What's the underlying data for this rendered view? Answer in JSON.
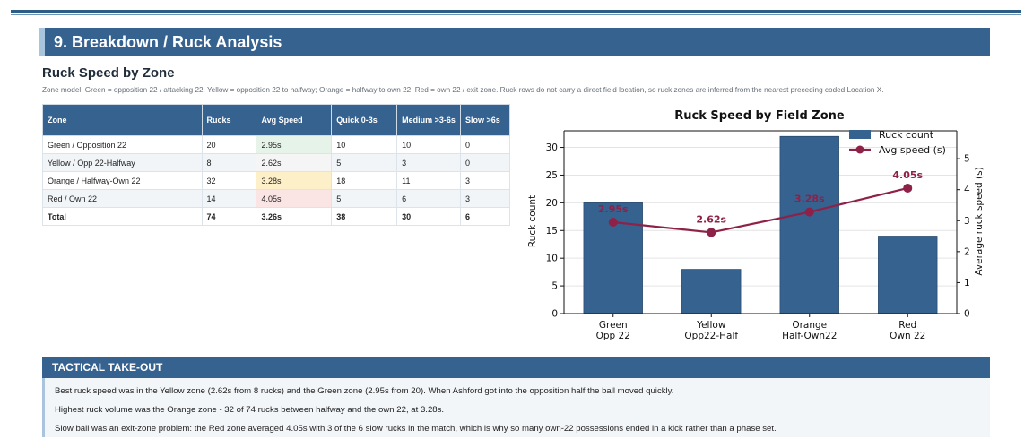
{
  "section": {
    "title": "9. Breakdown / Ruck Analysis"
  },
  "subtitle": "Ruck Speed by Zone",
  "zone_note": "Zone model: Green = opposition 22 / attacking 22; Yellow = opposition 22 to halfway; Orange = halfway to own 22; Red = own 22 / exit zone. Ruck rows do not carry a direct field location, so ruck zones are inferred from the nearest preceding coded Location X.",
  "table": {
    "headers": [
      "Zone",
      "Rucks",
      "Avg Speed",
      "Quick 0-3s",
      "Medium >3-6s",
      "Slow >6s"
    ],
    "rows": [
      [
        "Green / Opposition 22",
        "20",
        "2.95s",
        "10",
        "10",
        "0"
      ],
      [
        "Yellow / Opp 22-Halfway",
        "8",
        "2.62s",
        "5",
        "3",
        "0"
      ],
      [
        "Orange / Halfway-Own 22",
        "32",
        "3.28s",
        "18",
        "11",
        "3"
      ],
      [
        "Red / Own 22",
        "14",
        "4.05s",
        "5",
        "6",
        "3"
      ]
    ],
    "total": [
      "Total",
      "74",
      "3.26s",
      "38",
      "30",
      "6"
    ]
  },
  "colors": {
    "bar": "#366290",
    "line": "#8e2148",
    "header": "#366290",
    "speed_good": "#e6f3e8",
    "speed_warn": "#fdf0c8",
    "speed_bad": "#fbe4e4"
  },
  "chart_data": {
    "type": "bar",
    "title": "Ruck Speed by Field Zone",
    "categories": [
      [
        "Green",
        "Opp 22"
      ],
      [
        "Yellow",
        "Opp22-Half"
      ],
      [
        "Orange",
        "Half-Own22"
      ],
      [
        "Red",
        "Own 22"
      ]
    ],
    "series": [
      {
        "name": "Ruck count",
        "type": "bar",
        "axis": "left",
        "values": [
          20,
          8,
          32,
          14
        ]
      },
      {
        "name": "Avg speed (s)",
        "type": "line",
        "axis": "right",
        "values": [
          2.95,
          2.62,
          3.28,
          4.05
        ],
        "labels": [
          "2.95s",
          "2.62s",
          "3.28s",
          "4.05s"
        ]
      }
    ],
    "ylabel": "Ruck count",
    "ylim": [
      0,
      33
    ],
    "yticks": [
      0,
      5,
      10,
      15,
      20,
      25,
      30
    ],
    "y2label": "Average ruck speed (s)",
    "y2lim": [
      0,
      5.9
    ],
    "y2ticks": [
      0,
      1,
      2,
      3,
      4,
      5
    ],
    "legend": "top-right"
  },
  "takeout": {
    "title": "TACTICAL TAKE-OUT",
    "lines": [
      "Best ruck speed was in the Yellow zone (2.62s from 8 rucks) and the Green zone (2.95s from 20). When Ashford got into the opposition half the ball moved quickly.",
      "Highest ruck volume was the Orange zone - 32 of 74 rucks between halfway and the own 22, at 3.28s.",
      "Slow ball was an exit-zone problem: the Red zone averaged 4.05s with 3 of the 6 slow rucks in the match, which is why so many own-22 possessions ended in a kick rather than a phase set."
    ]
  }
}
